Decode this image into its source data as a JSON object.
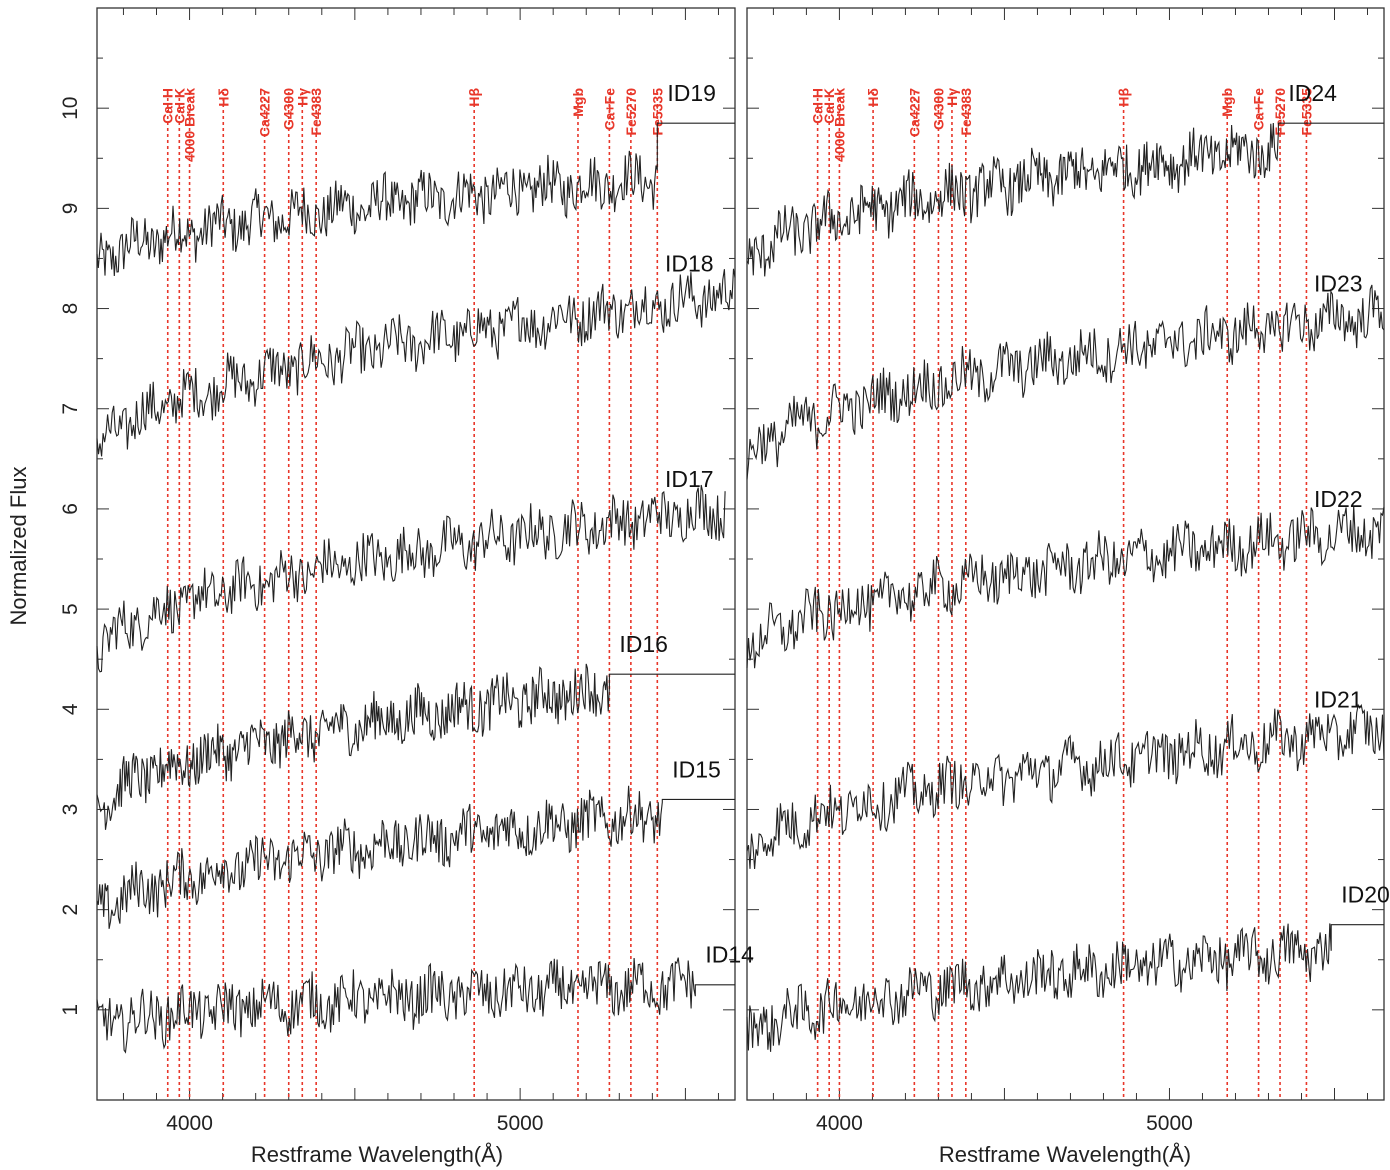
{
  "chart_data": [
    {
      "type": "line",
      "title": "",
      "xlabel": "Restframe Wavelength(Å)",
      "ylabel": "Normalized Flux",
      "xlim": [
        3720,
        5650
      ],
      "ylim": [
        0.1,
        11.0
      ],
      "xticks": [
        4000,
        5000
      ],
      "yticks": [
        1,
        2,
        3,
        4,
        5,
        6,
        7,
        8,
        9,
        10
      ],
      "grid": false,
      "colors": {
        "spectrum": "#222222",
        "line_marker": "#e8372a"
      },
      "line_markers": [
        {
          "name": "CaI H",
          "x": 3934
        },
        {
          "name": "CaI K",
          "x": 3969
        },
        {
          "name": "4000 Break",
          "x": 4000
        },
        {
          "name": "Hδ",
          "x": 4102
        },
        {
          "name": "Ca4227",
          "x": 4227
        },
        {
          "name": "G4300",
          "x": 4300
        },
        {
          "name": "Hγ",
          "x": 4341
        },
        {
          "name": "Fe4383",
          "x": 4383
        },
        {
          "name": "Hβ",
          "x": 4861
        },
        {
          "name": "Mgb",
          "x": 5175
        },
        {
          "name": "Ca+Fe",
          "x": 5270
        },
        {
          "name": "Fe5270",
          "x": 5335
        },
        {
          "name": "Fe5335",
          "x": 5415
        }
      ],
      "series": [
        {
          "name": "ID19",
          "x_range": [
            3720,
            5415
          ],
          "start": 8.4,
          "end": 9.3,
          "flat_after": 5415,
          "flat_value": 9.85
        },
        {
          "name": "ID18",
          "x_range": [
            3720,
            5650
          ],
          "start": 6.5,
          "end": 8.15
        },
        {
          "name": "ID17",
          "x_range": [
            3720,
            5620
          ],
          "start": 4.5,
          "end": 6.0
        },
        {
          "name": "ID16",
          "x_range": [
            3720,
            5270
          ],
          "start": 2.95,
          "end": 4.2,
          "flat_after": 5270,
          "flat_value": 4.35
        },
        {
          "name": "ID15",
          "x_range": [
            3720,
            5430
          ],
          "start": 1.9,
          "end": 2.95,
          "flat_after": 5430,
          "flat_value": 3.1
        },
        {
          "name": "ID14",
          "x_range": [
            3720,
            5530
          ],
          "start": 0.8,
          "end": 1.25,
          "flat_after": 5530,
          "flat_value": 1.25
        }
      ]
    },
    {
      "type": "line",
      "title": "",
      "xlabel": "Restframe Wavelength(Å)",
      "ylabel": "",
      "xlim": [
        3720,
        5650
      ],
      "ylim": [
        0.1,
        11.0
      ],
      "xticks": [
        4000,
        5000
      ],
      "grid": false,
      "colors": {
        "spectrum": "#222222",
        "line_marker": "#e8372a"
      },
      "line_markers": [
        {
          "name": "CaI H",
          "x": 3934
        },
        {
          "name": "CaI K",
          "x": 3969
        },
        {
          "name": "4000 Break",
          "x": 4000
        },
        {
          "name": "Hδ",
          "x": 4102
        },
        {
          "name": "Ca4227",
          "x": 4227
        },
        {
          "name": "G4300",
          "x": 4300
        },
        {
          "name": "Hγ",
          "x": 4341
        },
        {
          "name": "Fe4383",
          "x": 4383
        },
        {
          "name": "Hβ",
          "x": 4861
        },
        {
          "name": "Mgb",
          "x": 5175
        },
        {
          "name": "Ca+Fe",
          "x": 5270
        },
        {
          "name": "Fe5270",
          "x": 5335
        },
        {
          "name": "Fe5335",
          "x": 5415
        }
      ],
      "series": [
        {
          "name": "ID24",
          "x_range": [
            3720,
            5330
          ],
          "start": 8.4,
          "end": 9.6,
          "flat_after": 5330,
          "flat_value": 9.85
        },
        {
          "name": "ID23",
          "x_range": [
            3720,
            5650
          ],
          "start": 6.4,
          "end": 7.95
        },
        {
          "name": "ID22",
          "x_range": [
            3720,
            5650
          ],
          "start": 4.5,
          "end": 5.8
        },
        {
          "name": "ID21",
          "x_range": [
            3720,
            5650
          ],
          "start": 2.5,
          "end": 3.8
        },
        {
          "name": "ID20",
          "x_range": [
            3720,
            5490
          ],
          "start": 0.7,
          "end": 1.6,
          "flat_after": 5490,
          "flat_value": 1.85
        }
      ]
    }
  ]
}
